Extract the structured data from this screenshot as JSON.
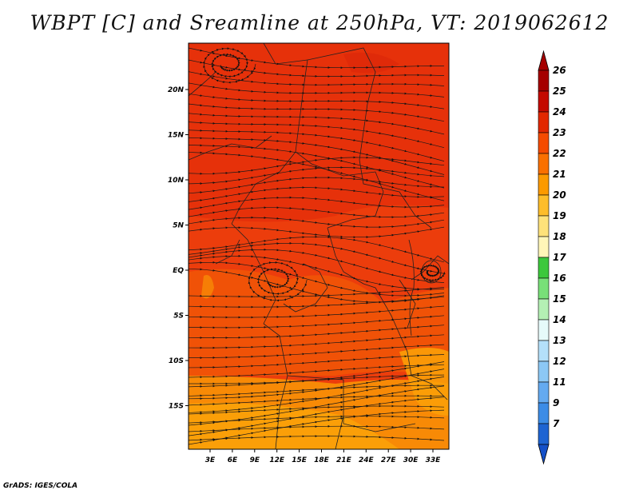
{
  "title": "WBPT [C] and Sreamline at 250hPa, VT: 2019062612",
  "footer": "GrADS: IGES/COLA",
  "map": {
    "lat_ticks": [
      {
        "value": 20,
        "label": "20N"
      },
      {
        "value": 15,
        "label": "15N"
      },
      {
        "value": 10,
        "label": "10N"
      },
      {
        "value": 5,
        "label": "5N"
      },
      {
        "value": 0,
        "label": "EQ"
      },
      {
        "value": -5,
        "label": "5S"
      },
      {
        "value": -10,
        "label": "10S"
      },
      {
        "value": -15,
        "label": "15S"
      }
    ],
    "lon_ticks": [
      {
        "value": 3,
        "label": "3E"
      },
      {
        "value": 6,
        "label": "6E"
      },
      {
        "value": 9,
        "label": "9E"
      },
      {
        "value": 12,
        "label": "12E"
      },
      {
        "value": 15,
        "label": "15E"
      },
      {
        "value": 18,
        "label": "18E"
      },
      {
        "value": 21,
        "label": "21E"
      },
      {
        "value": 24,
        "label": "24E"
      },
      {
        "value": 27,
        "label": "27E"
      },
      {
        "value": 30,
        "label": "30E"
      },
      {
        "value": 33,
        "label": "33E"
      }
    ]
  },
  "colorbar": {
    "levels": [
      {
        "label": "26",
        "color": "#a50000"
      },
      {
        "label": "25",
        "color": "#c40a00"
      },
      {
        "label": "24",
        "color": "#e22800"
      },
      {
        "label": "23",
        "color": "#f54b00"
      },
      {
        "label": "22",
        "color": "#fa7000"
      },
      {
        "label": "21",
        "color": "#fc9a00"
      },
      {
        "label": "20",
        "color": "#fdbd2a"
      },
      {
        "label": "19",
        "color": "#fee27a"
      },
      {
        "label": "18",
        "color": "#fff6b8"
      },
      {
        "label": "17",
        "color": "#3cc83c"
      },
      {
        "label": "16",
        "color": "#78e078"
      },
      {
        "label": "15",
        "color": "#b4f0b4"
      },
      {
        "label": "14",
        "color": "#e6fafa"
      },
      {
        "label": "13",
        "color": "#b4e0fa"
      },
      {
        "label": "12",
        "color": "#8cc8f5"
      },
      {
        "label": "11",
        "color": "#64aaf0"
      },
      {
        "label": "9",
        "color": "#3c8ce6"
      },
      {
        "label": "7",
        "color": "#1e64d2"
      }
    ],
    "bottom_color": "#1450c8"
  },
  "colors": {
    "field_base": "#ec3d0c",
    "warm_north": "#e5300a",
    "mid_band": "#f25a06",
    "south_band": "#f88a06",
    "far_south": "#fb9f08"
  }
}
